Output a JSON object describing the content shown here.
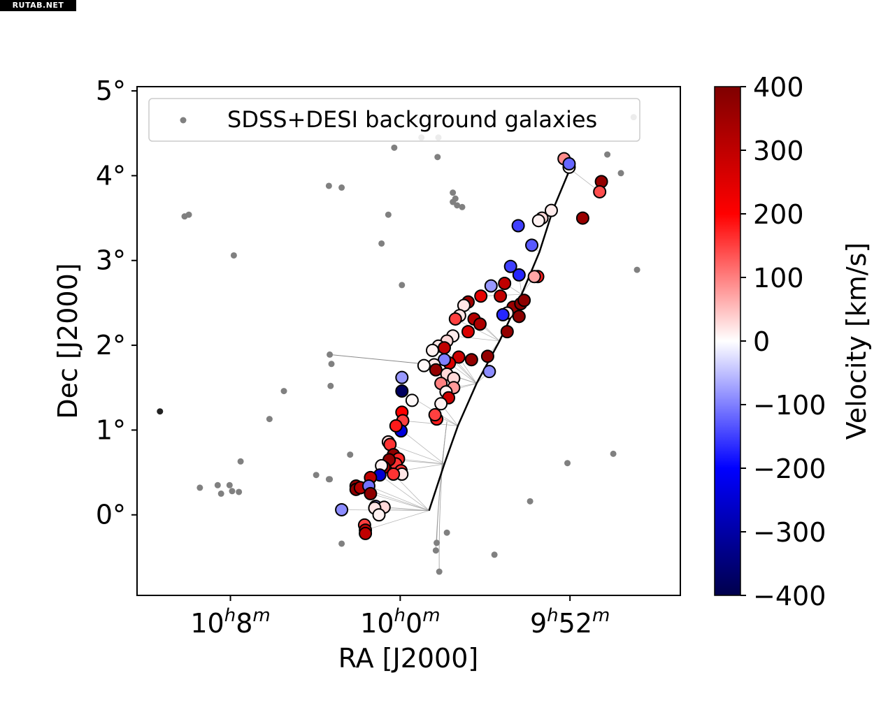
{
  "watermark": "RUTAB.NET",
  "chart_data": {
    "type": "scatter",
    "xlabel": "RA [J2000]",
    "ylabel": "Dec [J2000]",
    "x_ticks": [
      {
        "value": 152.0,
        "h": "10",
        "m": "8"
      },
      {
        "value": 150.0,
        "h": "10",
        "m": "0"
      },
      {
        "value": 148.0,
        "h": "9",
        "m": "52"
      }
    ],
    "y_ticks": [
      {
        "value": 0,
        "label": "0°"
      },
      {
        "value": 1,
        "label": "1°"
      },
      {
        "value": 2,
        "label": "2°"
      },
      {
        "value": 3,
        "label": "3°"
      },
      {
        "value": 4,
        "label": "4°"
      },
      {
        "value": 5,
        "label": "5°"
      }
    ],
    "xlim": [
      153.1,
      146.7
    ],
    "ylim": [
      -0.95,
      5.05
    ],
    "x_inverted": true,
    "legend": {
      "label": "SDSS+DESI background galaxies",
      "position": "top-left",
      "color": "#808080"
    },
    "colorbar": {
      "label": "Velocity [km/s]",
      "range": [
        -400,
        400
      ],
      "ticks": [
        "400",
        "300",
        "200",
        "100",
        "0",
        "−100",
        "−200",
        "−300",
        "−400"
      ],
      "tick_values": [
        400,
        300,
        200,
        100,
        0,
        -100,
        -200,
        -300,
        -400
      ],
      "colormap": "seismic",
      "colors": [
        "#00004c",
        "#0000ff",
        "#ffffff",
        "#ff0000",
        "#800000"
      ]
    },
    "stream_fit_line": [
      [
        149.66,
        0.05
      ],
      [
        149.48,
        0.6
      ],
      [
        149.32,
        1.05
      ],
      [
        149.1,
        1.55
      ],
      [
        148.83,
        2.05
      ],
      [
        148.57,
        2.6
      ],
      [
        148.36,
        3.1
      ],
      [
        148.2,
        3.6
      ],
      [
        148.0,
        4.08
      ]
    ],
    "background_galaxies": [
      [
        152.83,
        1.22
      ],
      [
        152.54,
        3.52
      ],
      [
        152.49,
        3.54
      ],
      [
        151.96,
        3.06
      ],
      [
        151.37,
        1.46
      ],
      [
        151.54,
        1.13
      ],
      [
        151.88,
        0.63
      ],
      [
        152.36,
        0.32
      ],
      [
        152.15,
        0.35
      ],
      [
        152.11,
        0.25
      ],
      [
        152.01,
        0.35
      ],
      [
        151.98,
        0.28
      ],
      [
        151.9,
        0.27
      ],
      [
        150.99,
        0.47
      ],
      [
        150.84,
        0.42
      ],
      [
        150.83,
        0.42
      ],
      [
        150.84,
        3.88
      ],
      [
        150.69,
        3.86
      ],
      [
        150.83,
        1.89
      ],
      [
        150.81,
        1.78
      ],
      [
        150.82,
        1.52
      ],
      [
        150.59,
        0.71
      ],
      [
        150.69,
        -0.34
      ],
      [
        150.22,
        3.2
      ],
      [
        150.14,
        3.54
      ],
      [
        150.07,
        4.33
      ],
      [
        149.98,
        2.71
      ],
      [
        149.56,
        4.22
      ],
      [
        149.38,
        3.8
      ],
      [
        149.35,
        3.73
      ],
      [
        149.33,
        3.65
      ],
      [
        149.27,
        3.63
      ],
      [
        149.38,
        3.69
      ],
      [
        149.57,
        -0.33
      ],
      [
        149.58,
        -0.42
      ],
      [
        149.54,
        -0.67
      ],
      [
        149.45,
        -0.21
      ],
      [
        148.89,
        -0.47
      ],
      [
        148.47,
        0.16
      ],
      [
        148.03,
        0.61
      ],
      [
        147.56,
        4.25
      ],
      [
        147.4,
        4.03
      ],
      [
        147.25,
        4.69
      ],
      [
        147.21,
        2.89
      ],
      [
        147.49,
        0.72
      ],
      [
        149.75,
        4.45
      ],
      [
        149.55,
        4.45
      ]
    ],
    "stream_members": [
      [
        148.01,
        4.1,
        5
      ],
      [
        148.07,
        4.2,
        90
      ],
      [
        148.01,
        4.14,
        -120
      ],
      [
        147.63,
        3.93,
        370
      ],
      [
        147.65,
        3.81,
        140
      ],
      [
        147.85,
        3.5,
        360
      ],
      [
        148.22,
        3.59,
        15
      ],
      [
        148.33,
        3.5,
        30
      ],
      [
        148.37,
        3.47,
        10
      ],
      [
        148.61,
        3.41,
        -150
      ],
      [
        148.45,
        3.18,
        -130
      ],
      [
        148.7,
        2.93,
        -150
      ],
      [
        148.6,
        2.83,
        -170
      ],
      [
        148.38,
        2.81,
        180
      ],
      [
        148.42,
        2.81,
        70
      ],
      [
        148.93,
        2.7,
        -80
      ],
      [
        148.77,
        2.73,
        300
      ],
      [
        148.82,
        2.58,
        300
      ],
      [
        148.67,
        2.45,
        360
      ],
      [
        148.58,
        2.49,
        380
      ],
      [
        148.54,
        2.53,
        380
      ],
      [
        148.6,
        2.34,
        380
      ],
      [
        148.74,
        2.38,
        15
      ],
      [
        148.79,
        2.36,
        -170
      ],
      [
        149.05,
        2.58,
        240
      ],
      [
        149.2,
        2.51,
        350
      ],
      [
        149.25,
        2.47,
        20
      ],
      [
        149.3,
        2.35,
        20
      ],
      [
        149.35,
        2.31,
        150
      ],
      [
        149.13,
        2.31,
        320
      ],
      [
        149.06,
        2.25,
        330
      ],
      [
        149.2,
        2.16,
        260
      ],
      [
        149.38,
        2.11,
        15
      ],
      [
        149.45,
        2.05,
        30
      ],
      [
        149.55,
        1.99,
        20
      ],
      [
        149.62,
        1.94,
        10
      ],
      [
        149.48,
        1.97,
        300
      ],
      [
        148.74,
        2.16,
        370
      ],
      [
        148.97,
        1.87,
        370
      ],
      [
        149.16,
        1.83,
        370
      ],
      [
        149.31,
        1.86,
        280
      ],
      [
        149.42,
        1.79,
        260
      ],
      [
        149.48,
        1.83,
        -100
      ],
      [
        149.6,
        1.77,
        20
      ],
      [
        149.72,
        1.76,
        5
      ],
      [
        149.58,
        1.71,
        370
      ],
      [
        149.45,
        1.66,
        30
      ],
      [
        149.37,
        1.61,
        30
      ],
      [
        149.37,
        1.5,
        80
      ],
      [
        149.52,
        1.55,
        100
      ],
      [
        148.95,
        1.69,
        -90
      ],
      [
        149.98,
        1.62,
        -80
      ],
      [
        149.98,
        1.46,
        -380
      ],
      [
        149.86,
        1.35,
        5
      ],
      [
        149.46,
        1.45,
        10
      ],
      [
        149.43,
        1.38,
        280
      ],
      [
        149.52,
        1.31,
        10
      ],
      [
        149.57,
        1.13,
        180
      ],
      [
        149.59,
        1.18,
        150
      ],
      [
        149.98,
        1.21,
        200
      ],
      [
        149.97,
        1.11,
        150
      ],
      [
        149.99,
        0.99,
        -240
      ],
      [
        150.05,
        1.05,
        180
      ],
      [
        150.14,
        0.86,
        30
      ],
      [
        150.12,
        0.83,
        160
      ],
      [
        150.08,
        0.71,
        380
      ],
      [
        150.02,
        0.66,
        170
      ],
      [
        150.05,
        0.6,
        160
      ],
      [
        150.13,
        0.65,
        380
      ],
      [
        150.19,
        0.56,
        340
      ],
      [
        149.99,
        0.52,
        160
      ],
      [
        149.98,
        0.48,
        20
      ],
      [
        150.08,
        0.48,
        160
      ],
      [
        150.22,
        0.58,
        10
      ],
      [
        150.24,
        0.47,
        -250
      ],
      [
        150.35,
        0.44,
        300
      ],
      [
        150.47,
        0.32,
        360
      ],
      [
        150.52,
        0.34,
        370
      ],
      [
        150.52,
        0.3,
        380
      ],
      [
        150.47,
        0.32,
        320
      ],
      [
        150.37,
        0.34,
        -110
      ],
      [
        150.35,
        0.25,
        380
      ],
      [
        150.29,
        0.1,
        -80
      ],
      [
        150.19,
        0.09,
        30
      ],
      [
        150.3,
        0.08,
        20
      ],
      [
        150.25,
        0.0,
        10
      ],
      [
        150.69,
        0.06,
        -90
      ],
      [
        150.42,
        -0.12,
        150
      ],
      [
        150.41,
        -0.18,
        300
      ],
      [
        150.41,
        -0.22,
        300
      ]
    ]
  }
}
